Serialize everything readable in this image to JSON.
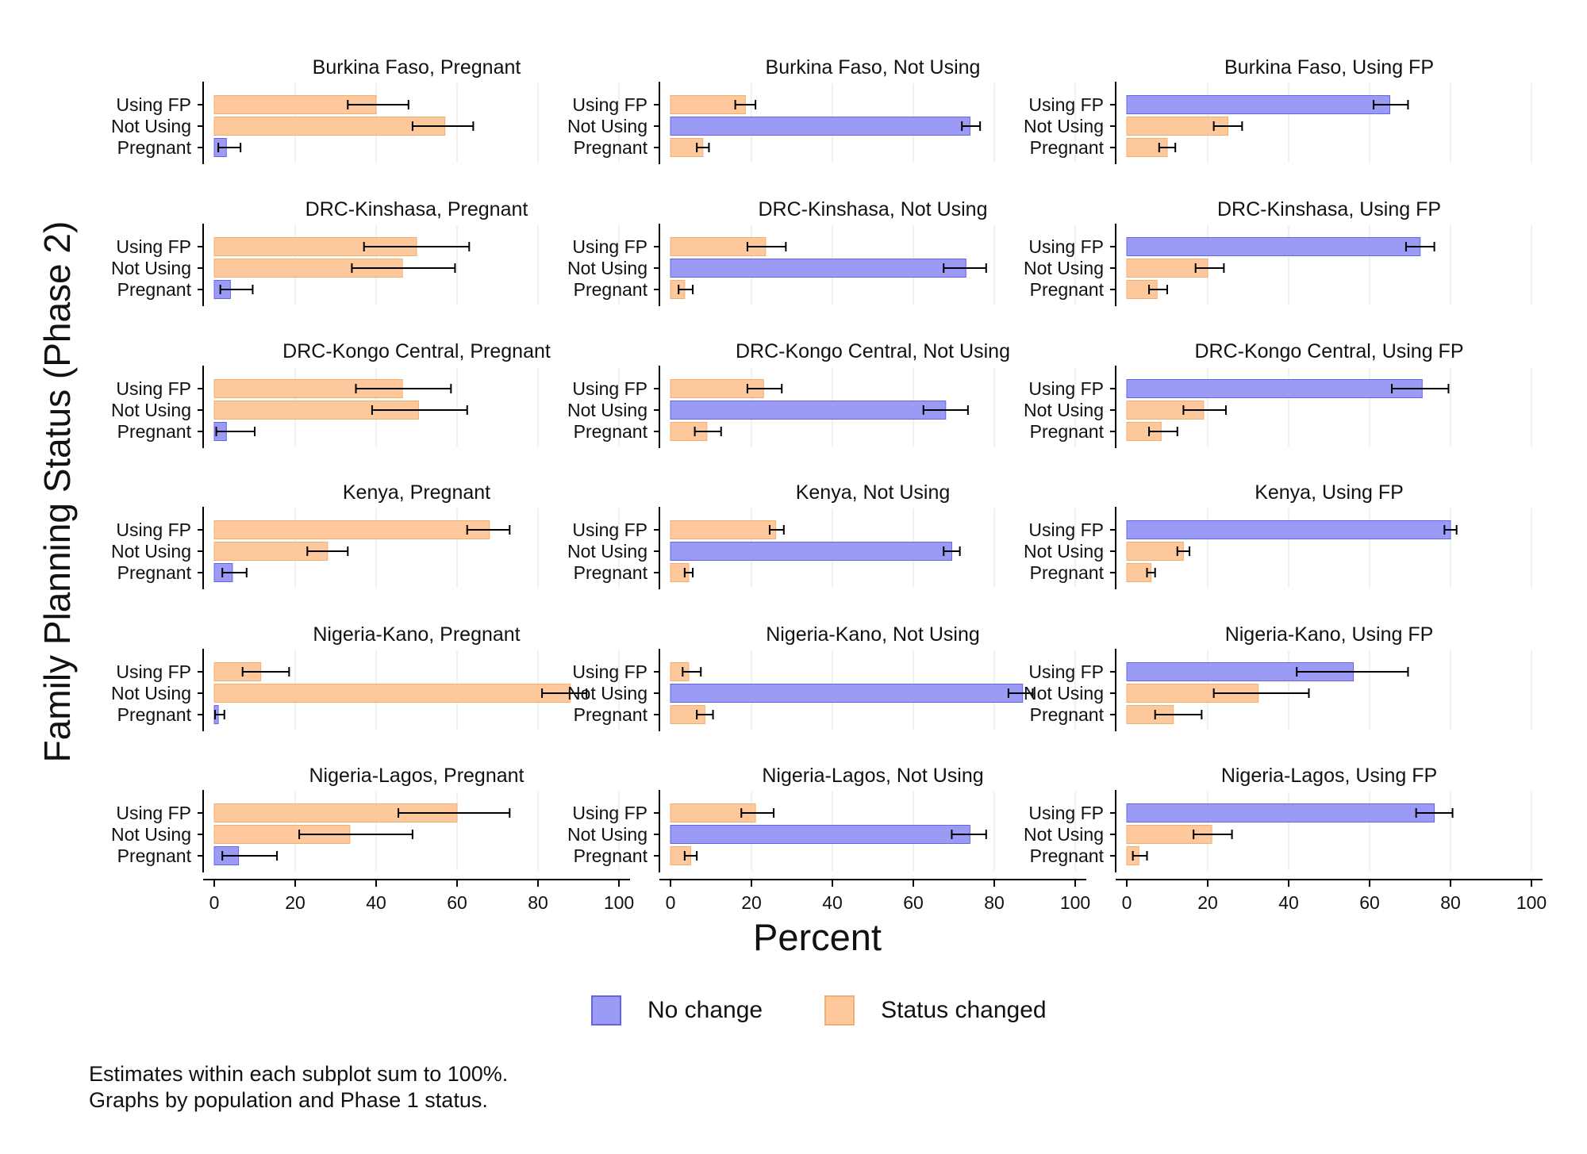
{
  "chart_data": {
    "type": "bar",
    "orientation": "horizontal",
    "ylabel": "Family Planning Status (Phase 2)",
    "xlabel": "Percent",
    "xlim": [
      0,
      100
    ],
    "xticks": [
      0,
      20,
      40,
      60,
      80,
      100
    ],
    "categories": [
      "Using FP",
      "Not Using",
      "Pregnant"
    ],
    "colors": {
      "No change": "#9b9bf5",
      "Status changed": "#fdc89b",
      "error_bar": "#000000"
    },
    "legend": {
      "position": "bottom",
      "entries": [
        "No change",
        "Status changed"
      ]
    },
    "panels": [
      {
        "title": "Burkina Faso, Pregnant",
        "phase1": "Pregnant",
        "values": [
          40,
          57,
          3
        ],
        "ci": [
          [
            33,
            48
          ],
          [
            49,
            64
          ],
          [
            1,
            6.5
          ]
        ]
      },
      {
        "title": "Burkina Faso, Not Using",
        "phase1": "Not Using",
        "values": [
          18.5,
          74,
          8
        ],
        "ci": [
          [
            16,
            21
          ],
          [
            72,
            76.5
          ],
          [
            6.5,
            9.5
          ]
        ]
      },
      {
        "title": "Burkina Faso, Using FP",
        "phase1": "Using FP",
        "values": [
          65,
          25,
          10
        ],
        "ci": [
          [
            61,
            69.5
          ],
          [
            21.5,
            28.5
          ],
          [
            8,
            12
          ]
        ]
      },
      {
        "title": "DRC-Kinshasa, Pregnant",
        "phase1": "Pregnant",
        "values": [
          50,
          46.5,
          4
        ],
        "ci": [
          [
            37,
            63
          ],
          [
            34,
            59.5
          ],
          [
            1.5,
            9.5
          ]
        ]
      },
      {
        "title": "DRC-Kinshasa, Not Using",
        "phase1": "Not Using",
        "values": [
          23.5,
          73,
          3.5
        ],
        "ci": [
          [
            19,
            28.5
          ],
          [
            67.5,
            78
          ],
          [
            2,
            5.5
          ]
        ]
      },
      {
        "title": "DRC-Kinshasa, Using FP",
        "phase1": "Using FP",
        "values": [
          72.5,
          20,
          7.5
        ],
        "ci": [
          [
            69,
            76
          ],
          [
            17,
            24
          ],
          [
            5.5,
            10
          ]
        ]
      },
      {
        "title": "DRC-Kongo Central, Pregnant",
        "phase1": "Pregnant",
        "values": [
          46.5,
          50.5,
          3
        ],
        "ci": [
          [
            35,
            58.5
          ],
          [
            39,
            62.5
          ],
          [
            0.5,
            10
          ]
        ]
      },
      {
        "title": "DRC-Kongo Central, Not Using",
        "phase1": "Not Using",
        "values": [
          23,
          68,
          9
        ],
        "ci": [
          [
            19,
            27.5
          ],
          [
            62.5,
            73.5
          ],
          [
            6,
            12.5
          ]
        ]
      },
      {
        "title": "DRC-Kongo Central, Using FP",
        "phase1": "Using FP",
        "values": [
          73,
          19,
          8.5
        ],
        "ci": [
          [
            65.5,
            79.5
          ],
          [
            14,
            24.5
          ],
          [
            5.5,
            12.5
          ]
        ]
      },
      {
        "title": "Kenya, Pregnant",
        "phase1": "Pregnant",
        "values": [
          68,
          28,
          4.5
        ],
        "ci": [
          [
            62.5,
            73
          ],
          [
            23,
            33
          ],
          [
            2,
            8
          ]
        ]
      },
      {
        "title": "Kenya, Not Using",
        "phase1": "Not Using",
        "values": [
          26,
          69.5,
          4.5
        ],
        "ci": [
          [
            24.5,
            28
          ],
          [
            67.5,
            71.5
          ],
          [
            3.5,
            5.5
          ]
        ]
      },
      {
        "title": "Kenya, Using FP",
        "phase1": "Using FP",
        "values": [
          80,
          14,
          6
        ],
        "ci": [
          [
            78.5,
            81.5
          ],
          [
            12.5,
            15.5
          ],
          [
            5,
            7
          ]
        ]
      },
      {
        "title": "Nigeria-Kano, Pregnant",
        "phase1": "Pregnant",
        "values": [
          11.5,
          88,
          1
        ],
        "ci": [
          [
            7,
            18.5
          ],
          [
            81,
            92
          ],
          [
            0.2,
            2.5
          ]
        ]
      },
      {
        "title": "Nigeria-Kano, Not Using",
        "phase1": "Not Using",
        "values": [
          4.5,
          87,
          8.5
        ],
        "ci": [
          [
            3,
            7.5
          ],
          [
            83.5,
            89.5
          ],
          [
            6.5,
            10.5
          ]
        ]
      },
      {
        "title": "Nigeria-Kano, Using FP",
        "phase1": "Using FP",
        "values": [
          56,
          32.5,
          11.5
        ],
        "ci": [
          [
            42,
            69.5
          ],
          [
            21.5,
            45
          ],
          [
            7,
            18.5
          ]
        ]
      },
      {
        "title": "Nigeria-Lagos, Pregnant",
        "phase1": "Pregnant",
        "values": [
          60,
          33.5,
          6
        ],
        "ci": [
          [
            45.5,
            73
          ],
          [
            21,
            49
          ],
          [
            2,
            15.5
          ]
        ]
      },
      {
        "title": "Nigeria-Lagos, Not Using",
        "phase1": "Not Using",
        "values": [
          21,
          74,
          5
        ],
        "ci": [
          [
            17.5,
            25.5
          ],
          [
            69.5,
            78
          ],
          [
            3.5,
            6.5
          ]
        ]
      },
      {
        "title": "Nigeria-Lagos, Using FP",
        "phase1": "Using FP",
        "values": [
          76,
          21,
          3
        ],
        "ci": [
          [
            71.5,
            80.5
          ],
          [
            16.5,
            26
          ],
          [
            1.5,
            5
          ]
        ]
      }
    ]
  },
  "notes": [
    "Estimates within each subplot sum to 100%.",
    "Graphs by population and Phase 1 status."
  ]
}
